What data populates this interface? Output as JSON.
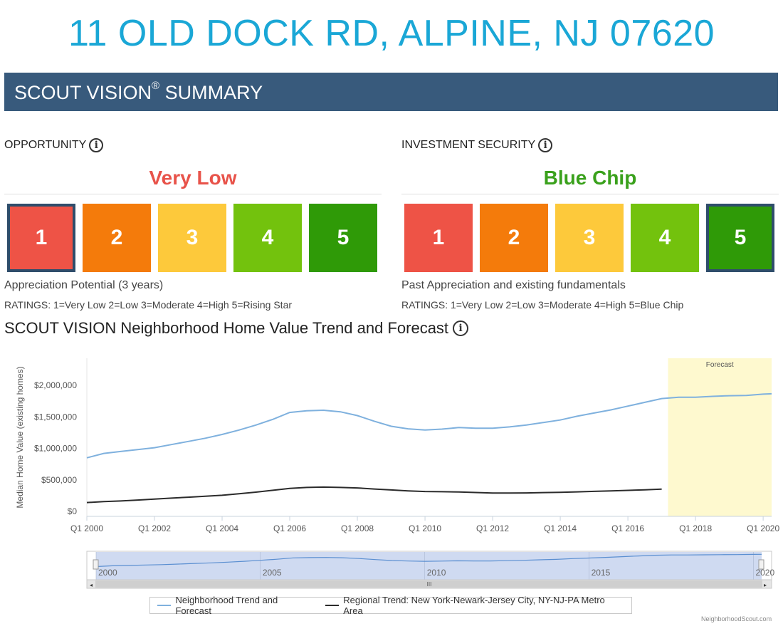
{
  "address": "11 OLD DOCK RD, ALPINE, NJ 07620",
  "banner": {
    "title": "SCOUT VISION",
    "reg": "®",
    "suffix": " SUMMARY"
  },
  "opportunity": {
    "heading": "OPPORTUNITY",
    "rating_word": "Very Low",
    "rating_color": "#e8534a",
    "selected": 1,
    "caption": "Appreciation Potential (3 years)",
    "key": "RATINGS: 1=Very Low 2=Low 3=Moderate 4=High 5=Rising Star"
  },
  "security": {
    "heading": "INVESTMENT SECURITY",
    "rating_word": "Blue Chip",
    "rating_color": "#3aa11c",
    "selected": 5,
    "caption": "Past Appreciation and existing fundamentals",
    "key": "RATINGS: 1=Very Low 2=Low 3=Moderate 4=High 5=Blue Chip"
  },
  "rating_scale": [
    {
      "label": "1",
      "color": "#ee5346"
    },
    {
      "label": "2",
      "color": "#f47b0b"
    },
    {
      "label": "3",
      "color": "#fdc93b"
    },
    {
      "label": "4",
      "color": "#73c20d"
    },
    {
      "label": "5",
      "color": "#2f9a07"
    }
  ],
  "chart_heading": "SCOUT VISION Neighborhood Home Value Trend and Forecast",
  "chart_data": {
    "type": "line",
    "ylabel": "Median Home Value (existing homes)",
    "xlabel": "",
    "ylim": [
      0,
      2500000
    ],
    "xlim": [
      2000.0,
      2020.25
    ],
    "y_ticks": [
      "$0",
      "$500,000",
      "$1,000,000",
      "$1,500,000",
      "$2,000,000"
    ],
    "y_tick_values": [
      0,
      500000,
      1000000,
      1500000,
      2000000
    ],
    "x_ticks": [
      "Q1 2000",
      "Q1 2002",
      "Q1 2004",
      "Q1 2006",
      "Q1 2008",
      "Q1 2010",
      "Q1 2012",
      "Q1 2014",
      "Q1 2016",
      "Q1 2018",
      "Q1 2020"
    ],
    "x_tick_values": [
      2000,
      2002,
      2004,
      2006,
      2008,
      2010,
      2012,
      2014,
      2016,
      2018,
      2020
    ],
    "forecast_label": "Forecast",
    "forecast_range": [
      2017.25,
      2020.25
    ],
    "grid": false,
    "series": [
      {
        "name": "Neighborhood Trend and Forecast",
        "color": "#7fb1de",
        "points": [
          [
            2000.0,
            850000
          ],
          [
            2000.5,
            920000
          ],
          [
            2001.0,
            950000
          ],
          [
            2001.5,
            980000
          ],
          [
            2002.0,
            1010000
          ],
          [
            2002.5,
            1060000
          ],
          [
            2003.0,
            1110000
          ],
          [
            2003.5,
            1160000
          ],
          [
            2004.0,
            1220000
          ],
          [
            2004.5,
            1290000
          ],
          [
            2005.0,
            1370000
          ],
          [
            2005.5,
            1460000
          ],
          [
            2006.0,
            1570000
          ],
          [
            2006.5,
            1595000
          ],
          [
            2007.0,
            1605000
          ],
          [
            2007.5,
            1580000
          ],
          [
            2008.0,
            1520000
          ],
          [
            2008.5,
            1430000
          ],
          [
            2009.0,
            1350000
          ],
          [
            2009.5,
            1310000
          ],
          [
            2010.0,
            1290000
          ],
          [
            2010.5,
            1305000
          ],
          [
            2011.0,
            1330000
          ],
          [
            2011.5,
            1320000
          ],
          [
            2012.0,
            1320000
          ],
          [
            2012.5,
            1340000
          ],
          [
            2013.0,
            1370000
          ],
          [
            2013.5,
            1410000
          ],
          [
            2014.0,
            1450000
          ],
          [
            2014.5,
            1510000
          ],
          [
            2015.0,
            1560000
          ],
          [
            2015.5,
            1610000
          ],
          [
            2016.0,
            1670000
          ],
          [
            2016.5,
            1730000
          ],
          [
            2017.0,
            1790000
          ],
          [
            2017.5,
            1810000
          ],
          [
            2018.0,
            1810000
          ],
          [
            2018.5,
            1825000
          ],
          [
            2019.0,
            1835000
          ],
          [
            2019.5,
            1840000
          ],
          [
            2020.0,
            1860000
          ],
          [
            2020.25,
            1865000
          ]
        ]
      },
      {
        "name": "Regional Trend: New York-Newark-Jersey City, NY-NJ-PA Metro Area",
        "color": "#2b2b2b",
        "points": [
          [
            2000.0,
            140000
          ],
          [
            2000.5,
            155000
          ],
          [
            2001.0,
            165000
          ],
          [
            2001.5,
            180000
          ],
          [
            2002.0,
            195000
          ],
          [
            2002.5,
            210000
          ],
          [
            2003.0,
            225000
          ],
          [
            2003.5,
            240000
          ],
          [
            2004.0,
            255000
          ],
          [
            2004.5,
            280000
          ],
          [
            2005.0,
            305000
          ],
          [
            2005.5,
            335000
          ],
          [
            2006.0,
            365000
          ],
          [
            2006.5,
            380000
          ],
          [
            2007.0,
            385000
          ],
          [
            2007.5,
            380000
          ],
          [
            2008.0,
            372000
          ],
          [
            2008.5,
            355000
          ],
          [
            2009.0,
            340000
          ],
          [
            2009.5,
            325000
          ],
          [
            2010.0,
            315000
          ],
          [
            2010.5,
            312000
          ],
          [
            2011.0,
            308000
          ],
          [
            2011.5,
            300000
          ],
          [
            2012.0,
            292000
          ],
          [
            2012.5,
            290000
          ],
          [
            2013.0,
            293000
          ],
          [
            2013.5,
            298000
          ],
          [
            2014.0,
            303000
          ],
          [
            2014.5,
            310000
          ],
          [
            2015.0,
            318000
          ],
          [
            2015.5,
            325000
          ],
          [
            2016.0,
            333000
          ],
          [
            2016.5,
            342000
          ],
          [
            2017.0,
            352000
          ]
        ]
      }
    ],
    "navigator": {
      "labels": [
        "2000",
        "2005",
        "2010",
        "2015",
        "2020"
      ],
      "label_values": [
        2000,
        2005,
        2010,
        2015,
        2020
      ],
      "scroll_mark": "III"
    }
  },
  "credit": "NeighborhoodScout.com"
}
